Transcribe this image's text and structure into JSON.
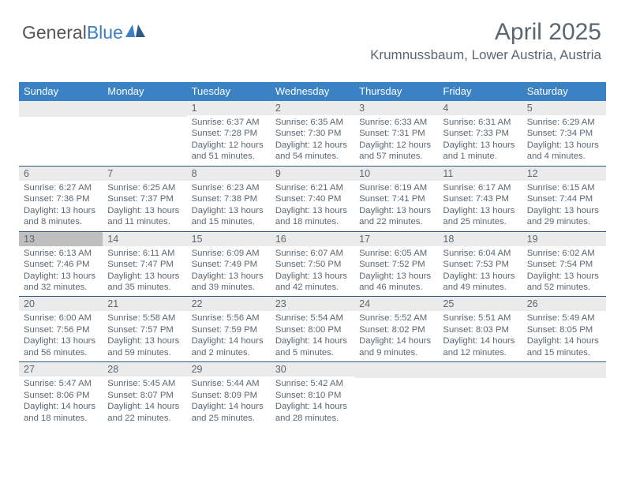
{
  "logo": {
    "part1": "General",
    "part2": "Blue"
  },
  "title": "April 2025",
  "location": "Krumnussbaum, Lower Austria, Austria",
  "colors": {
    "header_bg": "#3b82c4",
    "header_text": "#ffffff",
    "daynum_bg": "#ebebeb",
    "today_bg": "#bfbfbf",
    "border": "#2e5a8a",
    "text": "#5b6770",
    "logo_gray": "#555555",
    "logo_blue": "#3b7fc4"
  },
  "headers": [
    "Sunday",
    "Monday",
    "Tuesday",
    "Wednesday",
    "Thursday",
    "Friday",
    "Saturday"
  ],
  "weeks": [
    [
      {
        "n": "",
        "empty": true
      },
      {
        "n": "",
        "empty": true
      },
      {
        "n": "1",
        "sr": "6:37 AM",
        "ss": "7:28 PM",
        "dl": "12 hours and 51 minutes."
      },
      {
        "n": "2",
        "sr": "6:35 AM",
        "ss": "7:30 PM",
        "dl": "12 hours and 54 minutes."
      },
      {
        "n": "3",
        "sr": "6:33 AM",
        "ss": "7:31 PM",
        "dl": "12 hours and 57 minutes."
      },
      {
        "n": "4",
        "sr": "6:31 AM",
        "ss": "7:33 PM",
        "dl": "13 hours and 1 minute."
      },
      {
        "n": "5",
        "sr": "6:29 AM",
        "ss": "7:34 PM",
        "dl": "13 hours and 4 minutes."
      }
    ],
    [
      {
        "n": "6",
        "sr": "6:27 AM",
        "ss": "7:36 PM",
        "dl": "13 hours and 8 minutes."
      },
      {
        "n": "7",
        "sr": "6:25 AM",
        "ss": "7:37 PM",
        "dl": "13 hours and 11 minutes."
      },
      {
        "n": "8",
        "sr": "6:23 AM",
        "ss": "7:38 PM",
        "dl": "13 hours and 15 minutes."
      },
      {
        "n": "9",
        "sr": "6:21 AM",
        "ss": "7:40 PM",
        "dl": "13 hours and 18 minutes."
      },
      {
        "n": "10",
        "sr": "6:19 AM",
        "ss": "7:41 PM",
        "dl": "13 hours and 22 minutes."
      },
      {
        "n": "11",
        "sr": "6:17 AM",
        "ss": "7:43 PM",
        "dl": "13 hours and 25 minutes."
      },
      {
        "n": "12",
        "sr": "6:15 AM",
        "ss": "7:44 PM",
        "dl": "13 hours and 29 minutes."
      }
    ],
    [
      {
        "n": "13",
        "sr": "6:13 AM",
        "ss": "7:46 PM",
        "dl": "13 hours and 32 minutes.",
        "today": true
      },
      {
        "n": "14",
        "sr": "6:11 AM",
        "ss": "7:47 PM",
        "dl": "13 hours and 35 minutes."
      },
      {
        "n": "15",
        "sr": "6:09 AM",
        "ss": "7:49 PM",
        "dl": "13 hours and 39 minutes."
      },
      {
        "n": "16",
        "sr": "6:07 AM",
        "ss": "7:50 PM",
        "dl": "13 hours and 42 minutes."
      },
      {
        "n": "17",
        "sr": "6:05 AM",
        "ss": "7:52 PM",
        "dl": "13 hours and 46 minutes."
      },
      {
        "n": "18",
        "sr": "6:04 AM",
        "ss": "7:53 PM",
        "dl": "13 hours and 49 minutes."
      },
      {
        "n": "19",
        "sr": "6:02 AM",
        "ss": "7:54 PM",
        "dl": "13 hours and 52 minutes."
      }
    ],
    [
      {
        "n": "20",
        "sr": "6:00 AM",
        "ss": "7:56 PM",
        "dl": "13 hours and 56 minutes."
      },
      {
        "n": "21",
        "sr": "5:58 AM",
        "ss": "7:57 PM",
        "dl": "13 hours and 59 minutes."
      },
      {
        "n": "22",
        "sr": "5:56 AM",
        "ss": "7:59 PM",
        "dl": "14 hours and 2 minutes."
      },
      {
        "n": "23",
        "sr": "5:54 AM",
        "ss": "8:00 PM",
        "dl": "14 hours and 5 minutes."
      },
      {
        "n": "24",
        "sr": "5:52 AM",
        "ss": "8:02 PM",
        "dl": "14 hours and 9 minutes."
      },
      {
        "n": "25",
        "sr": "5:51 AM",
        "ss": "8:03 PM",
        "dl": "14 hours and 12 minutes."
      },
      {
        "n": "26",
        "sr": "5:49 AM",
        "ss": "8:05 PM",
        "dl": "14 hours and 15 minutes."
      }
    ],
    [
      {
        "n": "27",
        "sr": "5:47 AM",
        "ss": "8:06 PM",
        "dl": "14 hours and 18 minutes."
      },
      {
        "n": "28",
        "sr": "5:45 AM",
        "ss": "8:07 PM",
        "dl": "14 hours and 22 minutes."
      },
      {
        "n": "29",
        "sr": "5:44 AM",
        "ss": "8:09 PM",
        "dl": "14 hours and 25 minutes."
      },
      {
        "n": "30",
        "sr": "5:42 AM",
        "ss": "8:10 PM",
        "dl": "14 hours and 28 minutes."
      },
      {
        "n": "",
        "empty": true
      },
      {
        "n": "",
        "empty": true
      },
      {
        "n": "",
        "empty": true
      }
    ]
  ],
  "labels": {
    "sunrise": "Sunrise: ",
    "sunset": "Sunset: ",
    "daylight": "Daylight: "
  }
}
